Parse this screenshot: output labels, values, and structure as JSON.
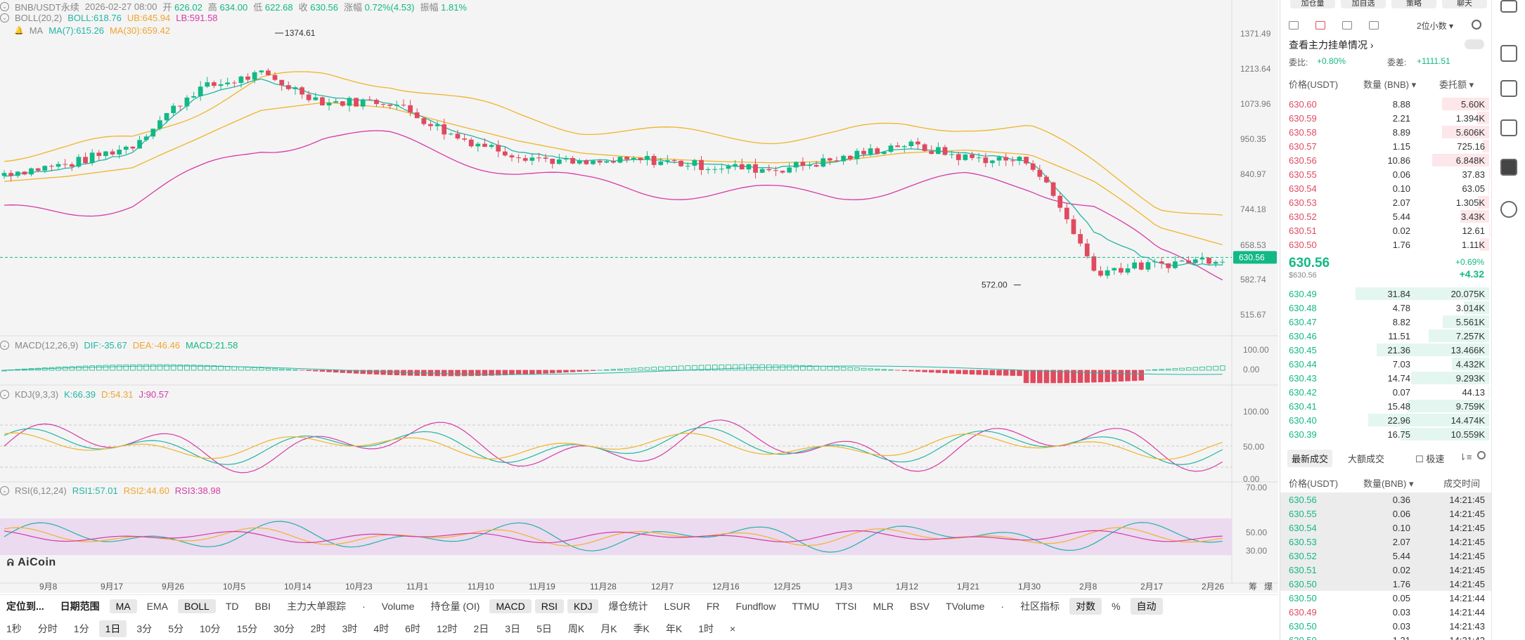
{
  "header": {
    "pair": "BNB/USDT永续",
    "date": "2026-02-27 08:00",
    "open_label": "开",
    "open": "626.02",
    "high_label": "高",
    "high": "634.00",
    "low_label": "低",
    "low": "622.68",
    "close_label": "收",
    "close": "630.56",
    "chg_label": "涨幅",
    "chg": "0.72%(4.53)",
    "amp_label": "振幅",
    "amp": "1.81%"
  },
  "boll": {
    "name": "BOLL(20,2)",
    "boll": "BOLL:618.76",
    "ub": "UB:645.94",
    "lb": "LB:591.58"
  },
  "ma": {
    "name": "MA",
    "ma7": "MA(7):615.26",
    "ma30": "MA(30):659.42"
  },
  "macd": {
    "name": "MACD(12,26,9)",
    "dif": "DIF:-35.67",
    "dea": "DEA:-46.46",
    "macd": "MACD:21.58"
  },
  "kdj": {
    "name": "KDJ(9,3,3)",
    "k": "K:66.39",
    "d": "D:54.31",
    "j": "J:90.57"
  },
  "rsi": {
    "name": "RSI(6,12,24)",
    "r1": "RSI1:57.01",
    "r2": "RSI2:44.60",
    "r3": "RSI3:38.98"
  },
  "annotations": {
    "high": "1374.61",
    "low": "572.00",
    "price_tag": "630.56"
  },
  "price_axis": [
    "1371.49",
    "1213.64",
    "1073.96",
    "950.35",
    "840.97",
    "744.18",
    "658.53",
    "582.74",
    "515.67"
  ],
  "macd_axis": [
    "100.00",
    "0.00"
  ],
  "kdj_axis": [
    "100.00",
    "50.00",
    "0.00"
  ],
  "rsi_axis": [
    "70.00",
    "50.00",
    "30.00"
  ],
  "x_axis": [
    "9月8",
    "9月17",
    "9月26",
    "10月5",
    "10月14",
    "10月23",
    "11月1",
    "11月10",
    "11月19",
    "11月28",
    "12月7",
    "12月16",
    "12月25",
    "1月3",
    "1月12",
    "1月21",
    "1月30",
    "2月8",
    "2月17",
    "2月26"
  ],
  "x_axis_right": [
    "筹",
    "爆"
  ],
  "logo": "AiCoin",
  "toolbar1": [
    "定位到...",
    "日期范围",
    "MA",
    "EMA",
    "BOLL",
    "TD",
    "BBI",
    "主力大单跟踪",
    "·",
    "Volume",
    "持仓量 (OI)",
    "MACD",
    "RSI",
    "KDJ",
    "爆仓统计",
    "LSUR",
    "FR",
    "Fundflow",
    "TTMU",
    "TTSI",
    "MLR",
    "BSV",
    "TVolume",
    "·",
    "社区指标",
    "对数",
    "%",
    "自动"
  ],
  "toolbar2": [
    "1秒",
    "分时",
    "1分",
    "1日",
    "3分",
    "5分",
    "10分",
    "15分",
    "30分",
    "2时",
    "3时",
    "4时",
    "6时",
    "12时",
    "2日",
    "3日",
    "5日",
    "周K",
    "月K",
    "季K",
    "年K",
    "1时",
    "×"
  ],
  "right_panel": {
    "top_buttons": [
      "加仓量",
      "加自选",
      "策略",
      "聊天"
    ],
    "precision": "2位小数",
    "main_orders": "查看主力挂单情况",
    "ratio_label": "委比:",
    "ratio": "+0.80%",
    "diff_label": "委差:",
    "diff": "+1111.51",
    "col_price": "价格(USDT)",
    "col_qty": "数量 (BNB)",
    "col_amt": "委托额",
    "asks": [
      [
        "630.60",
        "8.88",
        "5.60K"
      ],
      [
        "630.59",
        "2.21",
        "1.394K"
      ],
      [
        "630.58",
        "8.89",
        "5.606K"
      ],
      [
        "630.57",
        "1.15",
        "725.16"
      ],
      [
        "630.56",
        "10.86",
        "6.848K"
      ],
      [
        "630.55",
        "0.06",
        "37.83"
      ],
      [
        "630.54",
        "0.10",
        "63.05"
      ],
      [
        "630.53",
        "2.07",
        "1.305K"
      ],
      [
        "630.52",
        "5.44",
        "3.43K"
      ],
      [
        "630.51",
        "0.02",
        "12.61"
      ],
      [
        "630.50",
        "1.76",
        "1.11K"
      ]
    ],
    "mid_price": "630.56",
    "mid_sub": "$630.56",
    "mid_pct": "+0.69%",
    "mid_chg": "+4.32",
    "bids": [
      [
        "630.49",
        "31.84",
        "20.075K"
      ],
      [
        "630.48",
        "4.78",
        "3.014K"
      ],
      [
        "630.47",
        "8.82",
        "5.561K"
      ],
      [
        "630.46",
        "11.51",
        "7.257K"
      ],
      [
        "630.45",
        "21.36",
        "13.466K"
      ],
      [
        "630.44",
        "7.03",
        "4.432K"
      ],
      [
        "630.43",
        "14.74",
        "9.293K"
      ],
      [
        "630.42",
        "0.07",
        "44.13"
      ],
      [
        "630.41",
        "15.48",
        "9.759K"
      ],
      [
        "630.40",
        "22.96",
        "14.474K"
      ],
      [
        "630.39",
        "16.75",
        "10.559K"
      ]
    ],
    "tab_latest": "最新成交",
    "tab_big": "大额成交",
    "fast": "极速",
    "trades_price": "价格(USDT)",
    "trades_qty": "数量(BNB)",
    "trades_time": "成交时间",
    "trades": [
      [
        "630.56",
        "0.36",
        "14:21:45",
        "g"
      ],
      [
        "630.55",
        "0.06",
        "14:21:45",
        "g"
      ],
      [
        "630.54",
        "0.10",
        "14:21:45",
        "g"
      ],
      [
        "630.53",
        "2.07",
        "14:21:45",
        "g"
      ],
      [
        "630.52",
        "5.44",
        "14:21:45",
        "g"
      ],
      [
        "630.51",
        "0.02",
        "14:21:45",
        "g"
      ],
      [
        "630.50",
        "1.76",
        "14:21:45",
        "g"
      ],
      [
        "630.50",
        "0.05",
        "14:21:44",
        "g"
      ],
      [
        "630.49",
        "0.03",
        "14:21:44",
        "r"
      ],
      [
        "630.50",
        "0.03",
        "14:21:43",
        "g"
      ],
      [
        "630.50",
        "1.31",
        "14:21:43",
        "g"
      ]
    ]
  },
  "colors": {
    "up": "#12b886",
    "down": "#e04a5f",
    "ma7": "#22b5a5",
    "ma30": "#f0b429",
    "lb": "#d63aa6"
  },
  "chart_data": {
    "type": "candlestick",
    "categories": [
      "9月8",
      "9月17",
      "9月26",
      "10月5",
      "10月14",
      "10月23",
      "11月1",
      "11月10",
      "11月19",
      "11月28",
      "12月7",
      "12月16",
      "12月25",
      "1月3",
      "1月12",
      "1月21",
      "1月30",
      "2月8",
      "2月17",
      "2月26"
    ],
    "series": [
      {
        "name": "close",
        "values": [
          845,
          870,
          930,
          1130,
          1190,
          1080,
          1085,
          960,
          900,
          870,
          885,
          865,
          855,
          885,
          935,
          890,
          880,
          600,
          615,
          630.56
        ]
      },
      {
        "name": "MA(7)",
        "values": [
          835,
          860,
          905,
          1100,
          1170,
          1100,
          1080,
          980,
          910,
          880,
          885,
          870,
          860,
          880,
          920,
          905,
          880,
          690,
          615,
          615.26
        ]
      },
      {
        "name": "MA(30)",
        "values": [
          820,
          835,
          860,
          950,
          1050,
          1080,
          1060,
          1000,
          945,
          905,
          890,
          880,
          875,
          880,
          905,
          915,
          900,
          820,
          700,
          659.42
        ]
      }
    ],
    "annotations": {
      "high": 1374.61,
      "low": 572.0,
      "last": 630.56
    },
    "ylabel": "",
    "xlabel": ""
  }
}
